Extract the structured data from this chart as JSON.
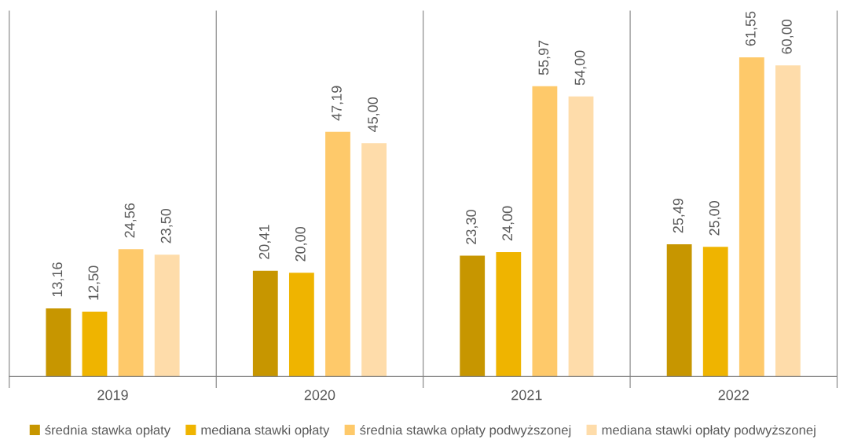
{
  "chart_data": {
    "type": "bar",
    "categories": [
      "2019",
      "2020",
      "2021",
      "2022"
    ],
    "series": [
      {
        "name": "średnia stawka opłaty",
        "color": "#c79600",
        "values": [
          13.16,
          20.41,
          23.3,
          25.49
        ],
        "value_labels": [
          "13,16",
          "20,41",
          "23,30",
          "25,49"
        ]
      },
      {
        "name": "mediana stawki opłaty",
        "color": "#efb400",
        "values": [
          12.5,
          20.0,
          24.0,
          25.0
        ],
        "value_labels": [
          "12,50",
          "20,00",
          "24,00",
          "25,00"
        ]
      },
      {
        "name": "średnia stawka opłaty podwyższonej",
        "color": "#fec96a",
        "values": [
          24.56,
          47.19,
          55.97,
          61.55
        ],
        "value_labels": [
          "24,56",
          "47,19",
          "55,97",
          "61,55"
        ]
      },
      {
        "name": "mediana stawki opłaty podwyższonej",
        "color": "#fedcaa",
        "values": [
          23.5,
          45.0,
          54.0,
          60.0
        ],
        "value_labels": [
          "23,50",
          "45,00",
          "54,00",
          "60,00"
        ]
      }
    ],
    "relative": false,
    "grid": false,
    "legend": "bottom",
    "tick_labels": "x"
  }
}
